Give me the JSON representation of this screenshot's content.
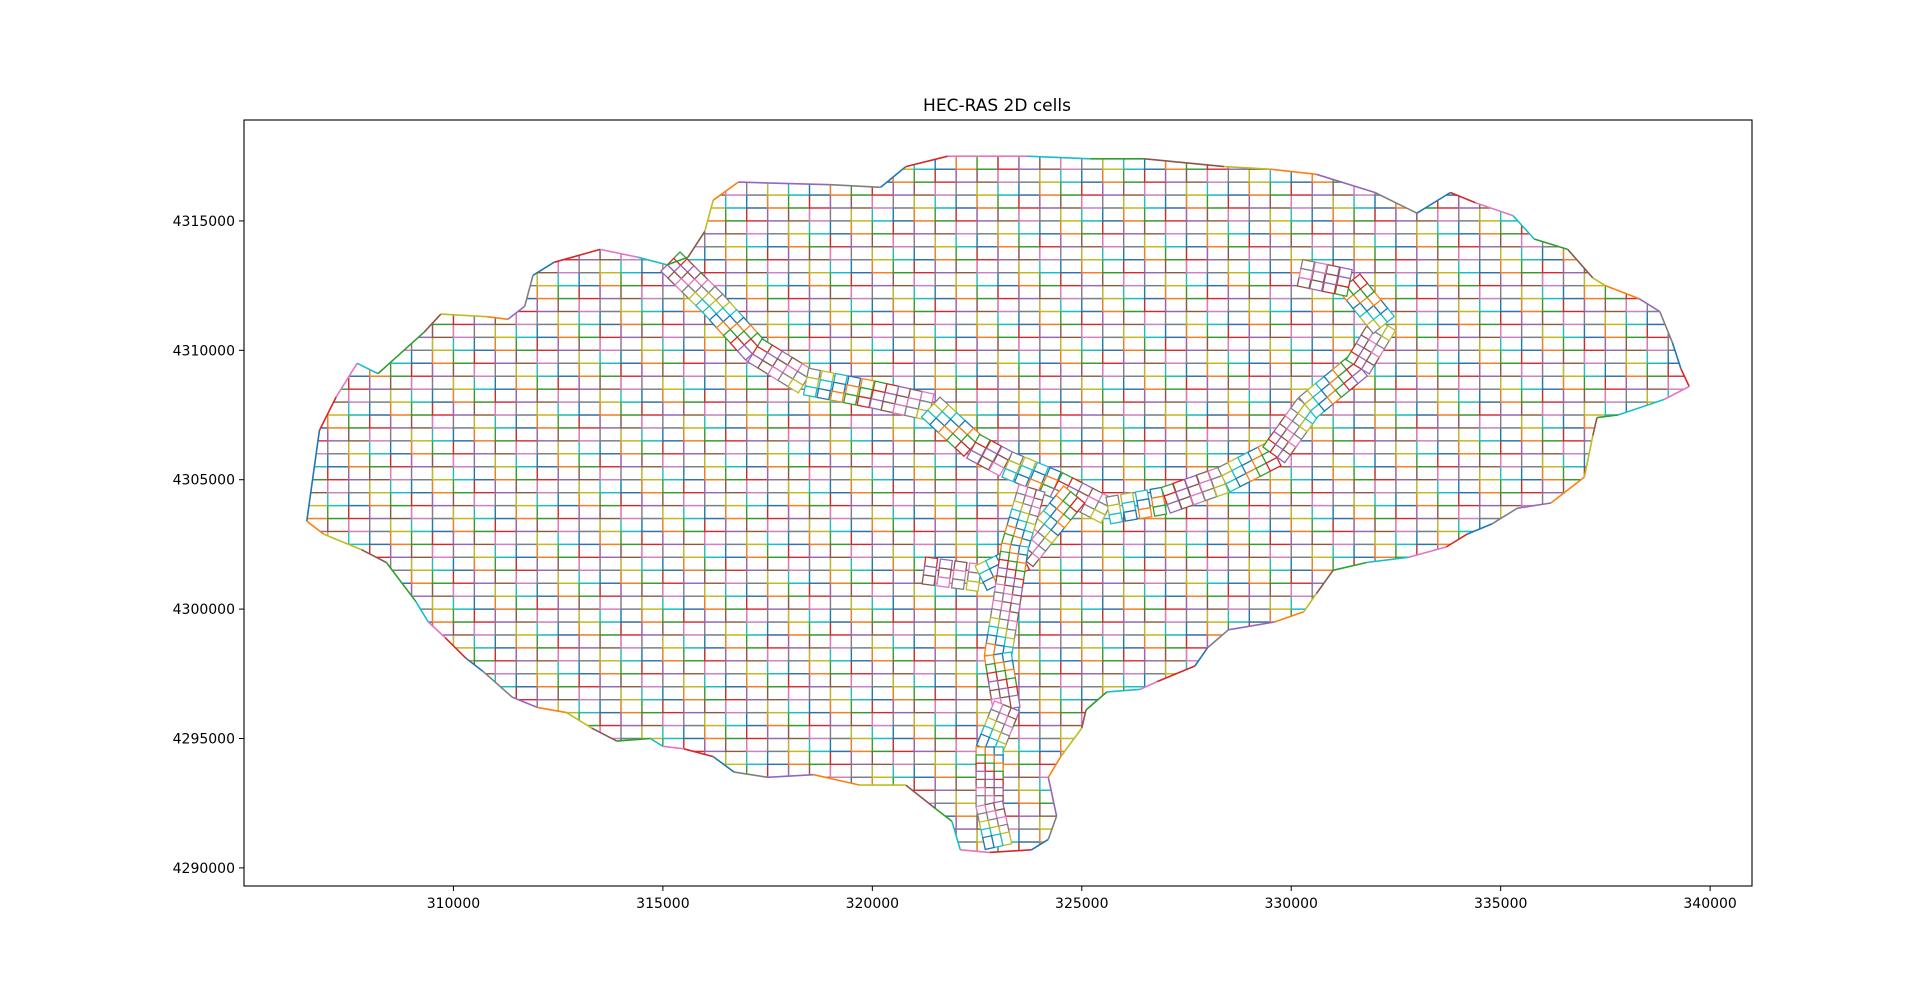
{
  "chart_data": {
    "type": "mesh",
    "title": "HEC-RAS 2D cells",
    "xlabel": "",
    "ylabel": "",
    "xlim": [
      305000,
      341000
    ],
    "ylim": [
      4289300,
      4318900
    ],
    "xticks": [
      310000,
      315000,
      320000,
      325000,
      330000,
      335000,
      340000
    ],
    "xtick_labels": [
      "310000",
      "315000",
      "320000",
      "325000",
      "330000",
      "335000",
      "340000"
    ],
    "yticks": [
      4290000,
      4295000,
      4300000,
      4305000,
      4310000,
      4315000
    ],
    "ytick_labels": [
      "4290000",
      "4295000",
      "4300000",
      "4305000",
      "4310000",
      "4315000"
    ],
    "cell_size": 500,
    "grid": false,
    "colors": [
      "#1f77b4",
      "#ff7f0e",
      "#2ca02c",
      "#d62728",
      "#9467bd",
      "#8c564b",
      "#e377c2",
      "#7f7f7f",
      "#bcbd22",
      "#17becf"
    ],
    "boundary": [
      [
        306500,
        4303400
      ],
      [
        306800,
        4306900
      ],
      [
        307200,
        4308200
      ],
      [
        307700,
        4309500
      ],
      [
        308200,
        4309100
      ],
      [
        309300,
        4310700
      ],
      [
        309700,
        4311400
      ],
      [
        310800,
        4311300
      ],
      [
        311300,
        4311200
      ],
      [
        311700,
        4311700
      ],
      [
        311900,
        4312900
      ],
      [
        312400,
        4313400
      ],
      [
        313500,
        4313900
      ],
      [
        314400,
        4313600
      ],
      [
        315100,
        4313300
      ],
      [
        315600,
        4313600
      ],
      [
        316000,
        4314600
      ],
      [
        316200,
        4315800
      ],
      [
        316800,
        4316500
      ],
      [
        319000,
        4316400
      ],
      [
        320200,
        4316300
      ],
      [
        320800,
        4317100
      ],
      [
        321800,
        4317500
      ],
      [
        323700,
        4317500
      ],
      [
        325200,
        4317400
      ],
      [
        326500,
        4317400
      ],
      [
        328400,
        4317100
      ],
      [
        329500,
        4317000
      ],
      [
        330600,
        4316800
      ],
      [
        332000,
        4316100
      ],
      [
        333000,
        4315300
      ],
      [
        333800,
        4316100
      ],
      [
        334400,
        4315700
      ],
      [
        335300,
        4315200
      ],
      [
        335800,
        4314300
      ],
      [
        336600,
        4313900
      ],
      [
        337200,
        4312800
      ],
      [
        337500,
        4312500
      ],
      [
        338300,
        4312000
      ],
      [
        338800,
        4311500
      ],
      [
        339100,
        4310300
      ],
      [
        339300,
        4309300
      ],
      [
        339500,
        4308600
      ],
      [
        338900,
        4308100
      ],
      [
        337800,
        4307500
      ],
      [
        337300,
        4307400
      ],
      [
        337200,
        4306700
      ],
      [
        337000,
        4305100
      ],
      [
        336200,
        4304100
      ],
      [
        335400,
        4303900
      ],
      [
        334800,
        4303300
      ],
      [
        334200,
        4302900
      ],
      [
        333700,
        4302400
      ],
      [
        332800,
        4302000
      ],
      [
        331800,
        4301800
      ],
      [
        331000,
        4301500
      ],
      [
        330600,
        4300600
      ],
      [
        330300,
        4299900
      ],
      [
        329600,
        4299500
      ],
      [
        328500,
        4299200
      ],
      [
        328000,
        4298500
      ],
      [
        327700,
        4297800
      ],
      [
        326800,
        4297200
      ],
      [
        326400,
        4296900
      ],
      [
        325600,
        4296800
      ],
      [
        325100,
        4296100
      ],
      [
        325000,
        4295400
      ],
      [
        324500,
        4294300
      ],
      [
        324200,
        4293500
      ],
      [
        324400,
        4292000
      ],
      [
        324200,
        4291100
      ],
      [
        323800,
        4290700
      ],
      [
        322800,
        4290600
      ],
      [
        322100,
        4290700
      ],
      [
        321900,
        4291800
      ],
      [
        321500,
        4292300
      ],
      [
        320800,
        4293200
      ],
      [
        319700,
        4293200
      ],
      [
        318600,
        4293600
      ],
      [
        317500,
        4293500
      ],
      [
        316700,
        4293700
      ],
      [
        316200,
        4294300
      ],
      [
        315500,
        4294600
      ],
      [
        315000,
        4294700
      ],
      [
        314700,
        4295000
      ],
      [
        313900,
        4294900
      ],
      [
        313300,
        4295400
      ],
      [
        312700,
        4296000
      ],
      [
        312000,
        4296200
      ],
      [
        311400,
        4296600
      ],
      [
        310700,
        4297600
      ],
      [
        310300,
        4298100
      ],
      [
        309800,
        4298900
      ],
      [
        309400,
        4299500
      ],
      [
        309100,
        4300300
      ],
      [
        308400,
        4301800
      ],
      [
        307800,
        4302300
      ],
      [
        306900,
        4302900
      ]
    ],
    "channels": [
      {
        "name": "",
        "points": [
          [
            315200,
            4313400
          ],
          [
            316200,
            4311800
          ],
          [
            317200,
            4310000
          ],
          [
            318400,
            4308800
          ],
          [
            320000,
            4308300
          ],
          [
            321400,
            4307800
          ],
          [
            322400,
            4306300
          ],
          [
            323200,
            4305600
          ],
          [
            324400,
            4304800
          ],
          [
            325600,
            4303800
          ],
          [
            327000,
            4304200
          ],
          [
            328400,
            4305000
          ],
          [
            329600,
            4306000
          ],
          [
            330400,
            4307800
          ],
          [
            331600,
            4309400
          ],
          [
            332200,
            4311000
          ],
          [
            331400,
            4312600
          ],
          [
            330200,
            4313000
          ]
        ]
      },
      {
        "name": "",
        "points": [
          [
            321200,
            4301500
          ],
          [
            322600,
            4301200
          ],
          [
            323600,
            4302000
          ],
          [
            324200,
            4303200
          ],
          [
            324800,
            4304400
          ]
        ]
      },
      {
        "name": "",
        "points": [
          [
            323800,
            4304600
          ],
          [
            323400,
            4302400
          ],
          [
            323200,
            4300200
          ],
          [
            323000,
            4298200
          ],
          [
            323200,
            4296200
          ],
          [
            322800,
            4294600
          ],
          [
            322800,
            4292400
          ],
          [
            323000,
            4290900
          ]
        ]
      }
    ]
  }
}
